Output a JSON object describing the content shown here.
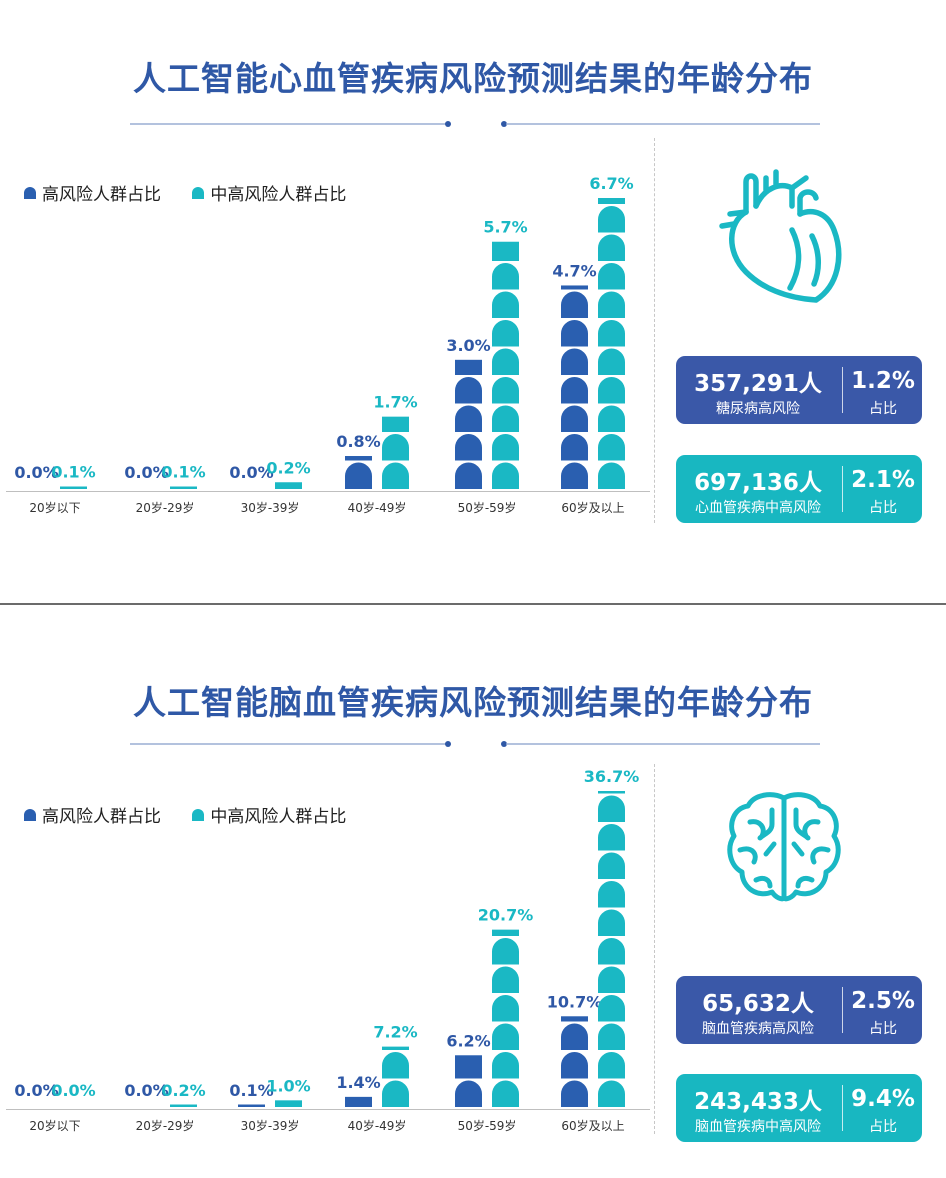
{
  "colors": {
    "title": "#2f58a6",
    "high": "#2a5fb0",
    "midhigh": "#1ab8c4",
    "card_high": "#3a58a8",
    "card_midhigh": "#18b7c1"
  },
  "legend": {
    "high": "高风险人群占比",
    "midhigh": "中高风险人群占比"
  },
  "panels": [
    {
      "title": "人工智能心血管疾病风险预测结果的年龄分布",
      "icon": "heart-icon",
      "cards": [
        {
          "count": "357,291人",
          "label": "糖尿病高风险",
          "percent": "1.2%",
          "percent_label": "占比"
        },
        {
          "count": "697,136人",
          "label": "心血管疾病中高风险",
          "percent": "2.1%",
          "percent_label": "占比"
        }
      ]
    },
    {
      "title": "人工智能脑血管疾病风险预测结果的年龄分布",
      "icon": "brain-icon",
      "cards": [
        {
          "count": "65,632人",
          "label": "脑血管疾病高风险",
          "percent": "2.5%",
          "percent_label": "占比"
        },
        {
          "count": "243,433人",
          "label": "脑血管疾病中高风险",
          "percent": "9.4%",
          "percent_label": "占比"
        }
      ]
    }
  ],
  "chart_data": [
    {
      "type": "bar",
      "title": "人工智能心血管疾病风险预测结果的年龄分布",
      "categories": [
        "20岁以下",
        "20岁-29岁",
        "30岁-39岁",
        "40岁-49岁",
        "50岁-59岁",
        "60岁及以上"
      ],
      "series": [
        {
          "name": "高风险人群占比",
          "values": [
            0.0,
            0.0,
            0.0,
            0.8,
            3.0,
            4.7
          ],
          "labels": [
            "0.0%",
            "0.0%",
            "0.0%",
            "0.8%",
            "3.0%",
            "4.7%"
          ]
        },
        {
          "name": "中高风险人群占比",
          "values": [
            0.1,
            0.1,
            0.2,
            1.7,
            5.7,
            6.7
          ],
          "labels": [
            "0.1%",
            "0.1%",
            "0.2%",
            "1.7%",
            "5.7%",
            "6.7%"
          ]
        }
      ],
      "legend": "top-left",
      "grid": false
    },
    {
      "type": "bar",
      "title": "人工智能脑血管疾病风险预测结果的年龄分布",
      "categories": [
        "20岁以下",
        "20岁-29岁",
        "30岁-39岁",
        "40岁-49岁",
        "50岁-59岁",
        "60岁及以上"
      ],
      "series": [
        {
          "name": "高风险人群占比",
          "values": [
            0.0,
            0.0,
            0.1,
            1.4,
            6.2,
            10.7
          ],
          "labels": [
            "0.0%",
            "0.0%",
            "0.1%",
            "1.4%",
            "6.2%",
            "10.7%"
          ]
        },
        {
          "name": "中高风险人群占比",
          "values": [
            0.0,
            0.2,
            1.0,
            7.2,
            20.7,
            36.7
          ],
          "labels": [
            "0.0%",
            "0.2%",
            "1.0%",
            "7.2%",
            "20.7%",
            "36.7%"
          ]
        }
      ],
      "legend": "top-left",
      "grid": false
    }
  ]
}
